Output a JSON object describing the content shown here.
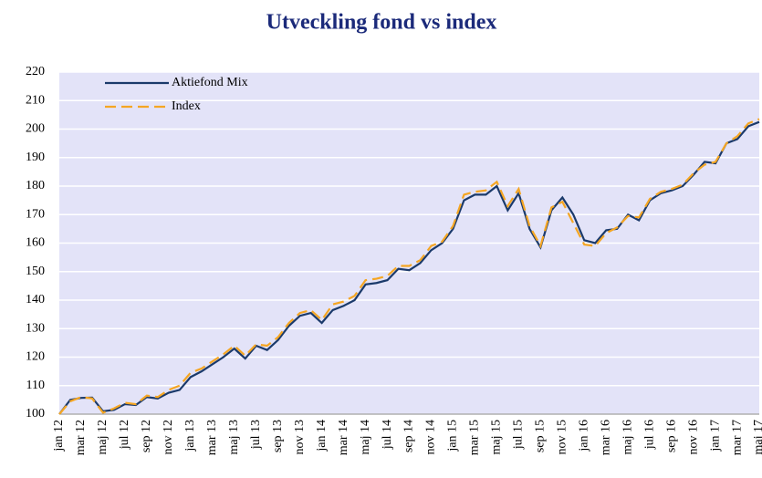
{
  "chart_data": {
    "type": "line",
    "title": "Utveckling fond vs index",
    "categories": [
      "jan 12",
      null,
      "mar 12",
      null,
      "maj 12",
      null,
      "jul 12",
      null,
      "sep 12",
      null,
      "nov 12",
      null,
      "jan 13",
      null,
      "mar 13",
      null,
      "maj 13",
      null,
      "jul 13",
      null,
      "sep 13",
      null,
      "nov 13",
      null,
      "jan 14",
      null,
      "mar 14",
      null,
      "maj 14",
      null,
      "jul 14",
      null,
      "sep 14",
      null,
      "nov 14",
      null,
      "jan 15",
      null,
      "mar 15",
      null,
      "maj 15",
      null,
      "jul 15",
      null,
      "sep 15",
      null,
      "nov 15",
      null,
      "jan 16",
      null,
      "mar 16",
      null,
      "maj 16",
      null,
      "jul 16",
      null,
      "sep 16",
      null,
      "nov 16",
      null,
      "jan 17",
      null,
      "mar 17",
      null,
      "maj 17"
    ],
    "series": [
      {
        "name": "Aktiefond Mix",
        "color": "#1b3a6b",
        "style": "solid",
        "values": [
          100,
          105,
          105.7,
          105.8,
          101,
          101.5,
          103.5,
          103.2,
          106,
          105.5,
          107.5,
          108.5,
          113,
          115,
          117.5,
          120,
          123,
          119.5,
          124,
          122.5,
          126,
          131,
          134.5,
          135.5,
          132,
          136.5,
          138,
          140,
          145.5,
          146,
          147,
          151,
          150.5,
          153,
          157.5,
          160,
          165,
          175,
          177,
          177,
          180,
          171.5,
          177.5,
          165,
          158.5,
          171.5,
          176,
          170,
          161,
          160,
          164.5,
          165,
          170,
          168,
          175,
          177.5,
          178.5,
          180,
          184,
          188.5,
          188,
          195,
          196.5,
          201,
          202.5
        ]
      },
      {
        "name": "Index",
        "color": "#f5a623",
        "style": "dashed",
        "values": [
          100,
          104.5,
          106,
          105.5,
          100.5,
          102,
          104,
          103.5,
          106.5,
          106,
          108.5,
          110,
          114.5,
          116,
          118.5,
          121,
          124,
          120.5,
          124.5,
          124,
          127,
          132,
          135.5,
          136.5,
          133,
          138.5,
          139.5,
          141.5,
          147,
          147.5,
          148.5,
          152,
          152,
          154,
          159,
          160.5,
          166,
          177,
          178,
          178.5,
          181.5,
          173,
          179,
          166,
          159,
          172.5,
          174.5,
          167,
          159.5,
          159,
          163.5,
          165.5,
          169.5,
          169,
          175.5,
          178,
          179,
          180.5,
          184.5,
          187.5,
          188.5,
          195,
          197.5,
          202,
          203.5
        ]
      }
    ],
    "ylim": [
      100,
      220
    ],
    "yticks": [
      100,
      110,
      120,
      130,
      140,
      150,
      160,
      170,
      180,
      190,
      200,
      210,
      220
    ],
    "grid": true,
    "legend": "upper left"
  }
}
